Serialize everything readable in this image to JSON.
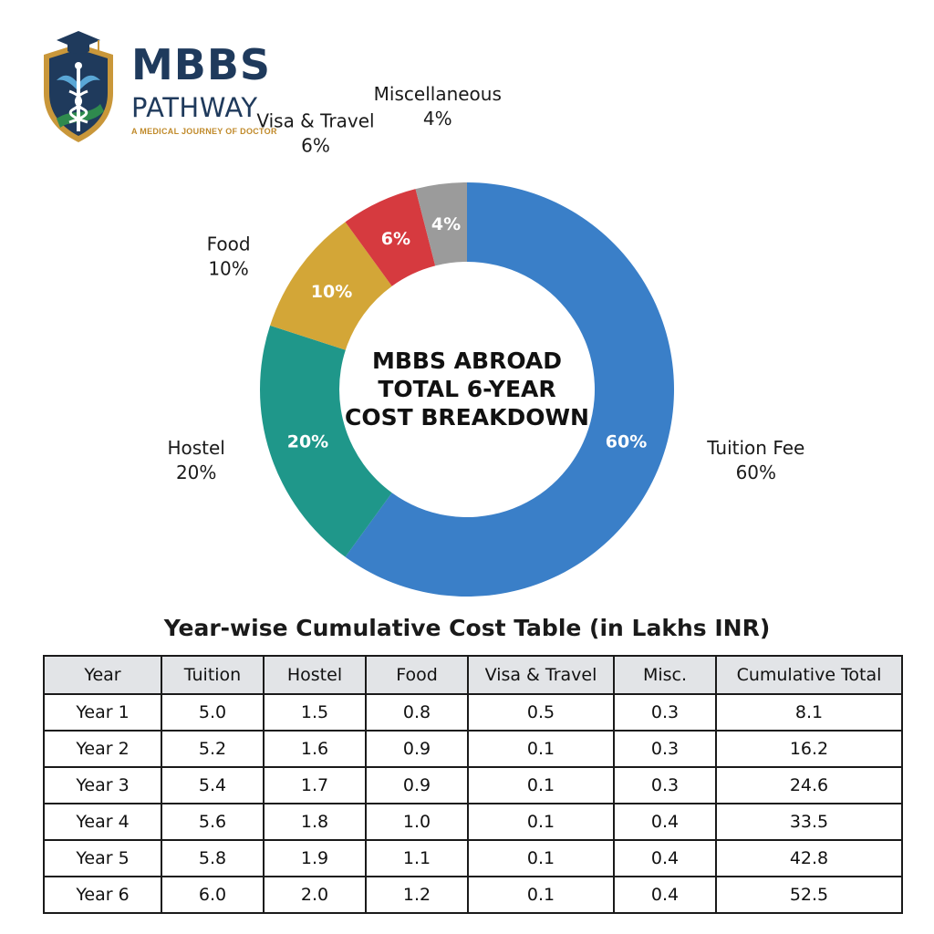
{
  "logo": {
    "name": "MBBS",
    "subtitle": "PATHWAY",
    "tagline": "A MEDICAL JOURNEY OF DOCTOR"
  },
  "colors": {
    "tuition": "#3a7fc8",
    "hostel": "#1f978a",
    "food": "#d3a637",
    "visa": "#d63a3f",
    "misc": "#9b9b9b"
  },
  "chart_data": [
    {
      "type": "pie",
      "title_lines": [
        "MBBS ABROAD",
        "TOTAL 6-YEAR",
        "COST BREAKDOWN"
      ],
      "slices": [
        {
          "label": "Tuition Fee",
          "value": 60,
          "pct_text": "60%",
          "color": "#3a7fc8"
        },
        {
          "label": "Hostel",
          "value": 20,
          "pct_text": "20%",
          "color": "#1f978a"
        },
        {
          "label": "Food",
          "value": 10,
          "pct_text": "10%",
          "color": "#d3a637"
        },
        {
          "label": "Visa & Travel",
          "value": 6,
          "pct_text": "6%",
          "color": "#d63a3f"
        },
        {
          "label": "Miscellaneous",
          "value": 4,
          "pct_text": "4%",
          "color": "#9b9b9b"
        }
      ]
    },
    {
      "type": "table",
      "title": "Year-wise Cumulative Cost Table (in Lakhs INR)",
      "columns": [
        "Year",
        "Tuition",
        "Hostel",
        "Food",
        "Visa & Travel",
        "Misc.",
        "Cumulative Total"
      ],
      "rows": [
        [
          "Year 1",
          "5.0",
          "1.5",
          "0.8",
          "0.5",
          "0.3",
          "8.1"
        ],
        [
          "Year 2",
          "5.2",
          "1.6",
          "0.9",
          "0.1",
          "0.3",
          "16.2"
        ],
        [
          "Year 3",
          "5.4",
          "1.7",
          "0.9",
          "0.1",
          "0.3",
          "24.6"
        ],
        [
          "Year 4",
          "5.6",
          "1.8",
          "1.0",
          "0.1",
          "0.4",
          "33.5"
        ],
        [
          "Year 5",
          "5.8",
          "1.9",
          "1.1",
          "0.1",
          "0.4",
          "42.8"
        ],
        [
          "Year 6",
          "6.0",
          "2.0",
          "1.2",
          "0.1",
          "0.4",
          "52.5"
        ]
      ]
    }
  ]
}
